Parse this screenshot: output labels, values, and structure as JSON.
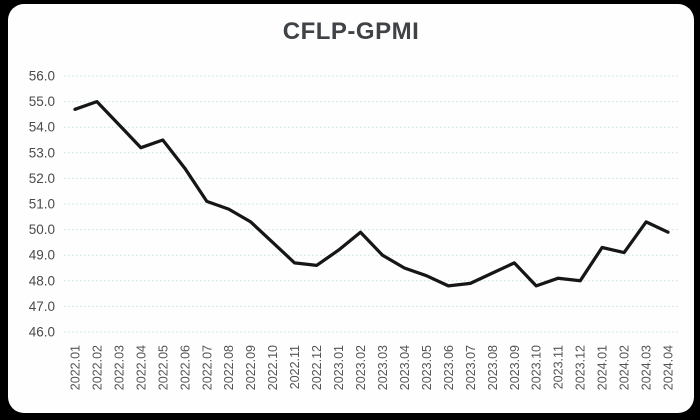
{
  "window": {
    "background_color": "#000000",
    "card_background_color": "#fefefe"
  },
  "chart_data": {
    "type": "line",
    "title": "CFLP-GPMI",
    "series_name": "CFLP-GPMI",
    "categories": [
      "2022.01",
      "2022.02",
      "2022.03",
      "2022.04",
      "2022.05",
      "2022.06",
      "2022.07",
      "2022.08",
      "2022.09",
      "2022.10",
      "2022.11",
      "2022.12",
      "2023.01",
      "2023.02",
      "2023.03",
      "2023.04",
      "2023.05",
      "2023.06",
      "2023.07",
      "2023.08",
      "2023.09",
      "2023.10",
      "2023.11",
      "2023.12",
      "2024.01",
      "2024.02",
      "2024.03",
      "2024.04"
    ],
    "values": [
      54.7,
      55.0,
      54.1,
      53.2,
      53.5,
      52.4,
      51.1,
      50.8,
      50.3,
      49.5,
      48.7,
      48.6,
      49.2,
      49.9,
      49.0,
      48.5,
      48.2,
      47.8,
      47.9,
      48.3,
      48.7,
      47.8,
      48.1,
      48.0,
      49.3,
      49.1,
      50.3,
      49.9
    ],
    "xlabel": "",
    "ylabel": "",
    "ylim": [
      46.0,
      56.0
    ],
    "ytick_labels": [
      "56.0",
      "55.0",
      "54.0",
      "53.0",
      "52.0",
      "51.0",
      "50.0",
      "49.0",
      "48.0",
      "47.0",
      "46.0"
    ],
    "grid": "horizontal-dotted",
    "legend_position": "none",
    "x_label_rotation_deg": -90,
    "colors": {
      "line": "#161616",
      "gridline": "#c7e0e2",
      "title": "#3f4347",
      "y_tick_label": "#4a4a4a",
      "x_tick_label": "#545454"
    }
  }
}
